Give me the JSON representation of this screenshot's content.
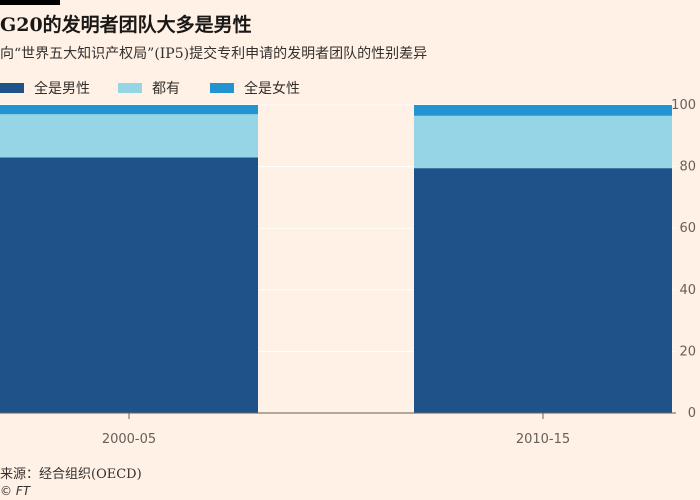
{
  "header": {
    "title": "G20的发明者团队大多是男性",
    "subtitle": "向“世界五大知识产权局”(IP5)提交专利申请的发明者团队的性别差异"
  },
  "colors": {
    "background": "#fff1e5",
    "all_male": "#1f5289",
    "mixed": "#96d5e5",
    "all_female": "#2394d2",
    "grid": "#ffffff",
    "axis": "#66605c"
  },
  "legend": {
    "items": [
      {
        "label": "全是男性",
        "color": "#1f5289"
      },
      {
        "label": "都有",
        "color": "#96d5e5"
      },
      {
        "label": "全是女性",
        "color": "#2394d2"
      }
    ]
  },
  "chart_data": {
    "type": "bar",
    "stacked": true,
    "categories": [
      "2000-05",
      "2010-15"
    ],
    "series": [
      {
        "name": "全是男性",
        "values": [
          83,
          79.5
        ]
      },
      {
        "name": "都有",
        "values": [
          14,
          17
        ]
      },
      {
        "name": "全是女性",
        "values": [
          3,
          3.5
        ]
      }
    ],
    "ylim": [
      0,
      100
    ],
    "yticks": [
      0,
      20,
      40,
      60,
      80,
      100
    ],
    "y_axis_position": "right",
    "grid": true,
    "legend_position": "top-left"
  },
  "footer": {
    "source": "来源：经合组织(OECD)",
    "credit": "© FT"
  }
}
